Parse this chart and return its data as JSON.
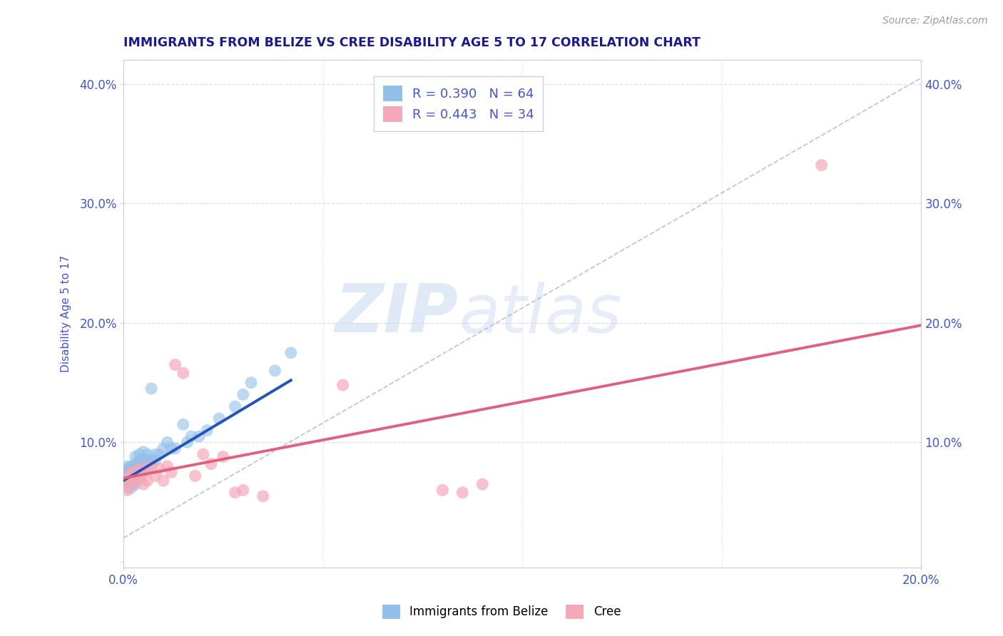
{
  "title": "IMMIGRANTS FROM BELIZE VS CREE DISABILITY AGE 5 TO 17 CORRELATION CHART",
  "source_text": "Source: ZipAtlas.com",
  "ylabel": "Disability Age 5 to 17",
  "xlim": [
    0.0,
    0.2
  ],
  "ylim": [
    -0.005,
    0.42
  ],
  "y_ticks": [
    0.0,
    0.1,
    0.2,
    0.3,
    0.4
  ],
  "y_tick_labels_left": [
    "",
    "10.0%",
    "20.0%",
    "30.0%",
    "40.0%"
  ],
  "y_tick_labels_right": [
    "",
    "10.0%",
    "20.0%",
    "30.0%",
    "40.0%"
  ],
  "x_ticks": [
    0.0,
    0.2
  ],
  "x_tick_labels": [
    "0.0%",
    "20.0%"
  ],
  "legend_label_blue": "R = 0.390   N = 64",
  "legend_label_pink": "R = 0.443   N = 34",
  "blue_color": "#92C0E8",
  "pink_color": "#F4A8B8",
  "blue_line_color": "#2255BB",
  "pink_line_color": "#E06080",
  "watermark_zip": "ZIP",
  "watermark_atlas": "atlas",
  "title_color": "#1a1a8c",
  "axis_label_color": "#4455cc",
  "tick_color": "#4455cc",
  "grid_color": "#ddddee",
  "blue_scatter_x": [
    0.0,
    0.0,
    0.001,
    0.001,
    0.001,
    0.001,
    0.001,
    0.001,
    0.001,
    0.001,
    0.001,
    0.001,
    0.002,
    0.002,
    0.002,
    0.002,
    0.002,
    0.002,
    0.002,
    0.002,
    0.002,
    0.002,
    0.002,
    0.003,
    0.003,
    0.003,
    0.003,
    0.003,
    0.003,
    0.003,
    0.003,
    0.003,
    0.004,
    0.004,
    0.004,
    0.004,
    0.004,
    0.005,
    0.005,
    0.005,
    0.005,
    0.006,
    0.006,
    0.006,
    0.007,
    0.007,
    0.008,
    0.008,
    0.009,
    0.01,
    0.011,
    0.012,
    0.013,
    0.015,
    0.016,
    0.017,
    0.019,
    0.021,
    0.024,
    0.028,
    0.03,
    0.032,
    0.038,
    0.042
  ],
  "blue_scatter_y": [
    0.07,
    0.075,
    0.065,
    0.07,
    0.075,
    0.08,
    0.068,
    0.072,
    0.078,
    0.062,
    0.068,
    0.073,
    0.065,
    0.07,
    0.075,
    0.08,
    0.068,
    0.072,
    0.078,
    0.062,
    0.068,
    0.073,
    0.077,
    0.065,
    0.07,
    0.075,
    0.08,
    0.068,
    0.072,
    0.078,
    0.082,
    0.088,
    0.07,
    0.075,
    0.08,
    0.085,
    0.09,
    0.075,
    0.08,
    0.085,
    0.092,
    0.08,
    0.085,
    0.09,
    0.085,
    0.145,
    0.085,
    0.09,
    0.09,
    0.095,
    0.1,
    0.095,
    0.095,
    0.115,
    0.1,
    0.105,
    0.105,
    0.11,
    0.12,
    0.13,
    0.14,
    0.15,
    0.16,
    0.175
  ],
  "pink_scatter_x": [
    0.0,
    0.001,
    0.001,
    0.002,
    0.002,
    0.002,
    0.003,
    0.003,
    0.004,
    0.004,
    0.005,
    0.005,
    0.006,
    0.006,
    0.007,
    0.008,
    0.009,
    0.01,
    0.011,
    0.012,
    0.013,
    0.015,
    0.018,
    0.02,
    0.022,
    0.025,
    0.028,
    0.03,
    0.035,
    0.055,
    0.08,
    0.085,
    0.09,
    0.175
  ],
  "pink_scatter_y": [
    0.065,
    0.06,
    0.07,
    0.065,
    0.07,
    0.075,
    0.068,
    0.075,
    0.07,
    0.078,
    0.065,
    0.075,
    0.068,
    0.078,
    0.08,
    0.072,
    0.078,
    0.068,
    0.08,
    0.075,
    0.165,
    0.158,
    0.072,
    0.09,
    0.082,
    0.088,
    0.058,
    0.06,
    0.055,
    0.148,
    0.06,
    0.058,
    0.065,
    0.332
  ],
  "dashed_line_x": [
    0.0,
    0.2
  ],
  "dashed_line_y": [
    0.02,
    0.405
  ],
  "blue_regline_x": [
    0.0,
    0.042
  ],
  "blue_regline_y": [
    0.068,
    0.152
  ],
  "pink_regline_x": [
    0.0,
    0.2
  ],
  "pink_regline_y": [
    0.07,
    0.198
  ]
}
